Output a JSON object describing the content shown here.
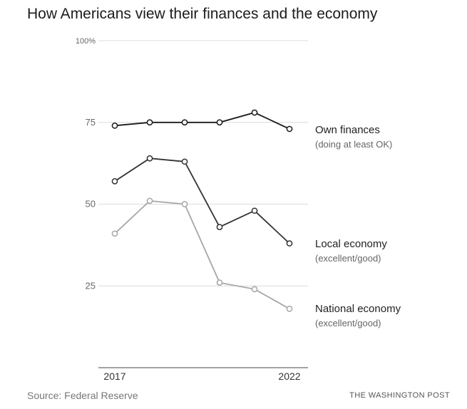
{
  "title": "How Americans view their finances and the economy",
  "source": "Source: Federal Reserve",
  "credit": "THE WASHINGTON POST",
  "chart_data": {
    "type": "line",
    "x": [
      2017,
      2018,
      2019,
      2020,
      2021,
      2022
    ],
    "x_tick_labels": [
      "2017",
      "2022"
    ],
    "ylim": [
      0,
      100
    ],
    "y_ticks": [
      25,
      50,
      75,
      100
    ],
    "y_tick_labels": [
      "25",
      "50",
      "75",
      "100%"
    ],
    "grid": true,
    "legend_placement": "right, labels beside line ends",
    "series": [
      {
        "name": "Own finances",
        "note": "(doing at least OK)",
        "values": [
          74,
          75,
          75,
          75,
          78,
          73
        ],
        "color": "#1a1a1a"
      },
      {
        "name": "Local economy",
        "note": "(excellent/good)",
        "values": [
          57,
          64,
          63,
          43,
          48,
          38
        ],
        "color": "#333333"
      },
      {
        "name": "National economy",
        "note": "(excellent/good)",
        "values": [
          41,
          51,
          50,
          26,
          24,
          18
        ],
        "color": "#a6a6a6"
      }
    ]
  }
}
